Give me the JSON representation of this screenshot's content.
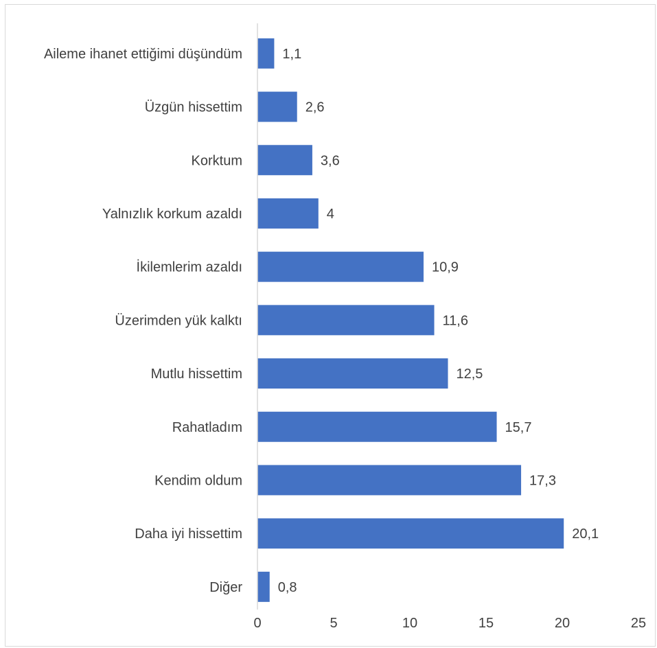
{
  "chart_data": {
    "type": "bar",
    "orientation": "horizontal",
    "categories": [
      "Aileme ihanet ettiğimi düşündüm",
      "Üzgün hissettim",
      "Korktum",
      "Yalnızlık korkum azaldı",
      "İkilemlerim azaldı",
      "Üzerimden yük kalktı",
      "Mutlu hissettim",
      "Rahatladım",
      "Kendim oldum",
      "Daha iyi hissettim",
      "Diğer"
    ],
    "values": [
      1.1,
      2.6,
      3.6,
      4,
      10.9,
      11.6,
      12.5,
      15.7,
      17.3,
      20.1,
      0.8
    ],
    "value_labels": [
      "1,1",
      "2,6",
      "3,6",
      "4",
      "10,9",
      "11,6",
      "12,5",
      "15,7",
      "17,3",
      "20,1",
      "0,8"
    ],
    "xlim": [
      0,
      25
    ],
    "x_ticks": [
      "0",
      "5",
      "10",
      "15",
      "20",
      "25"
    ],
    "grid": false,
    "bar_color": "#4472c4",
    "title": "",
    "xlabel": "",
    "ylabel": ""
  }
}
